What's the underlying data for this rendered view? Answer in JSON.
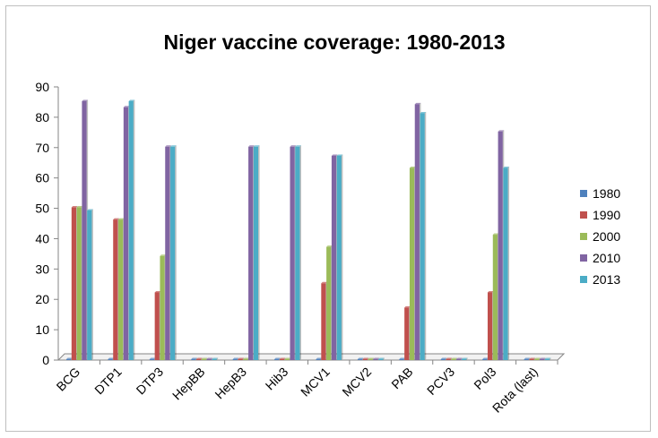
{
  "chart_data": {
    "type": "bar",
    "title": "Niger vaccine coverage: 1980-2013",
    "xlabel": "",
    "ylabel": "",
    "ylim": [
      0,
      90
    ],
    "yticks": [
      0,
      10,
      20,
      30,
      40,
      50,
      60,
      70,
      80,
      90
    ],
    "categories": [
      "BCG",
      "DTP1",
      "DTP3",
      "HepBB",
      "HepB3",
      "Hib3",
      "MCV1",
      "MCV2",
      "PAB",
      "PCV3",
      "Pol3",
      "Rota (last)"
    ],
    "series": [
      {
        "name": "1980",
        "color": "#4f81bd",
        "values": [
          0,
          0,
          0,
          0,
          0,
          0,
          0,
          0,
          0,
          0,
          0,
          0
        ]
      },
      {
        "name": "1990",
        "color": "#c0504d",
        "values": [
          50,
          46,
          22,
          0,
          0,
          0,
          25,
          0,
          17,
          0,
          22,
          0
        ]
      },
      {
        "name": "2000",
        "color": "#9bbb59",
        "values": [
          50,
          46,
          34,
          0,
          0,
          0,
          37,
          0,
          63,
          0,
          41,
          0
        ]
      },
      {
        "name": "2010",
        "color": "#8064a2",
        "values": [
          85,
          83,
          70,
          0,
          70,
          70,
          67,
          0,
          84,
          0,
          75,
          0
        ]
      },
      {
        "name": "2013",
        "color": "#4bacc6",
        "values": [
          49,
          85,
          70,
          0,
          70,
          70,
          67,
          0,
          81,
          0,
          63,
          0
        ]
      }
    ],
    "grid": false,
    "legend_position": "right"
  }
}
